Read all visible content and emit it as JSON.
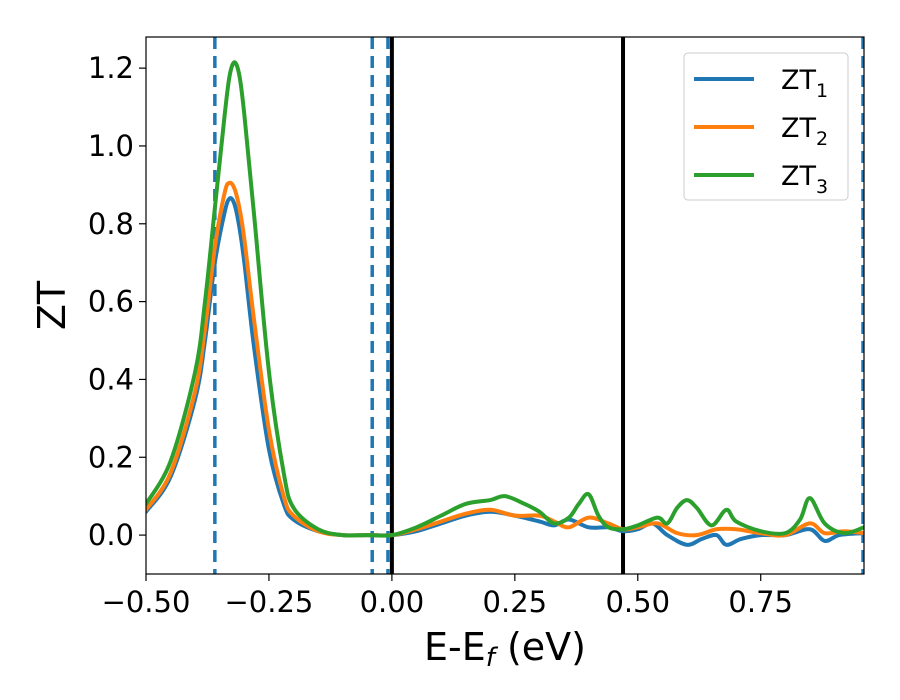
{
  "chart_data": {
    "type": "line",
    "xlabel": "E-E",
    "xlabel_subscript": "f",
    "xlabel_suffix": " (eV)",
    "ylabel": "ZT",
    "xlim": [
      -0.5,
      0.96
    ],
    "ylim": [
      -0.1,
      1.28
    ],
    "xticks": [
      -0.5,
      -0.25,
      0.0,
      0.25,
      0.5,
      0.75
    ],
    "xtick_labels": [
      "−0.50",
      "−0.25",
      "0.00",
      "0.25",
      "0.50",
      "0.75"
    ],
    "yticks": [
      0.0,
      0.2,
      0.4,
      0.6,
      0.8,
      1.0,
      1.2
    ],
    "ytick_labels": [
      "0.0",
      "0.2",
      "0.4",
      "0.6",
      "0.8",
      "1.0",
      "1.2"
    ],
    "grid": false,
    "legend_position": "top-right",
    "vlines": [
      {
        "x": -0.36,
        "style": "dashed",
        "color": "#1f77b4"
      },
      {
        "x": -0.04,
        "style": "dashed",
        "color": "#1f77b4"
      },
      {
        "x": -0.008,
        "style": "dashed",
        "color": "#1f77b4"
      },
      {
        "x": 0.0,
        "style": "solid",
        "color": "#000000"
      },
      {
        "x": 0.47,
        "style": "solid",
        "color": "#000000"
      },
      {
        "x": 0.958,
        "style": "dashed",
        "color": "#1f77b4"
      }
    ],
    "series": [
      {
        "name": "ZT",
        "subscript": "1",
        "color": "#1f77b4",
        "x": [
          -0.5,
          -0.45,
          -0.4,
          -0.38,
          -0.36,
          -0.34,
          -0.33,
          -0.32,
          -0.31,
          -0.3,
          -0.28,
          -0.25,
          -0.22,
          -0.2,
          -0.15,
          -0.1,
          -0.05,
          0.0,
          0.05,
          0.1,
          0.15,
          0.2,
          0.25,
          0.3,
          0.33,
          0.36,
          0.4,
          0.44,
          0.47,
          0.5,
          0.53,
          0.56,
          0.6,
          0.63,
          0.66,
          0.68,
          0.71,
          0.75,
          0.8,
          0.85,
          0.88,
          0.91,
          0.96
        ],
        "y": [
          0.06,
          0.15,
          0.35,
          0.5,
          0.7,
          0.83,
          0.865,
          0.85,
          0.79,
          0.7,
          0.48,
          0.22,
          0.08,
          0.04,
          0.01,
          0.0,
          0.0,
          0.0,
          0.01,
          0.03,
          0.05,
          0.06,
          0.05,
          0.035,
          0.025,
          0.04,
          0.02,
          0.02,
          0.01,
          0.015,
          0.03,
          0.0,
          -0.025,
          -0.01,
          0.0,
          -0.025,
          -0.01,
          0.0,
          0.0,
          0.015,
          -0.015,
          0.0,
          0.005
        ]
      },
      {
        "name": "ZT",
        "subscript": "2",
        "color": "#ff7f0e",
        "x": [
          -0.5,
          -0.45,
          -0.4,
          -0.38,
          -0.36,
          -0.34,
          -0.33,
          -0.32,
          -0.31,
          -0.3,
          -0.28,
          -0.25,
          -0.22,
          -0.2,
          -0.15,
          -0.1,
          -0.05,
          0.0,
          0.05,
          0.1,
          0.15,
          0.2,
          0.25,
          0.3,
          0.33,
          0.36,
          0.4,
          0.44,
          0.47,
          0.5,
          0.54,
          0.58,
          0.62,
          0.66,
          0.7,
          0.75,
          0.8,
          0.85,
          0.88,
          0.92,
          0.96
        ],
        "y": [
          0.065,
          0.16,
          0.37,
          0.53,
          0.74,
          0.88,
          0.905,
          0.89,
          0.84,
          0.76,
          0.55,
          0.27,
          0.1,
          0.05,
          0.01,
          0.0,
          0.0,
          0.0,
          0.015,
          0.035,
          0.055,
          0.065,
          0.05,
          0.05,
          0.035,
          0.02,
          0.045,
          0.03,
          0.015,
          0.02,
          0.03,
          0.005,
          0.0,
          0.015,
          0.015,
          0.005,
          0.0,
          0.03,
          0.005,
          0.01,
          0.005
        ]
      },
      {
        "name": "ZT",
        "subscript": "3",
        "color": "#2ca02c",
        "x": [
          -0.5,
          -0.45,
          -0.4,
          -0.38,
          -0.36,
          -0.34,
          -0.33,
          -0.32,
          -0.31,
          -0.3,
          -0.28,
          -0.25,
          -0.22,
          -0.2,
          -0.15,
          -0.1,
          -0.05,
          0.0,
          0.05,
          0.1,
          0.15,
          0.2,
          0.23,
          0.27,
          0.3,
          0.33,
          0.36,
          0.38,
          0.4,
          0.42,
          0.44,
          0.47,
          0.5,
          0.54,
          0.56,
          0.58,
          0.6,
          0.62,
          0.65,
          0.68,
          0.7,
          0.75,
          0.8,
          0.83,
          0.85,
          0.88,
          0.92,
          0.96
        ],
        "y": [
          0.08,
          0.19,
          0.42,
          0.6,
          0.84,
          1.08,
          1.18,
          1.215,
          1.18,
          1.08,
          0.82,
          0.42,
          0.16,
          0.07,
          0.015,
          0.0,
          0.0,
          0.0,
          0.02,
          0.05,
          0.08,
          0.09,
          0.1,
          0.08,
          0.06,
          0.03,
          0.045,
          0.08,
          0.105,
          0.05,
          0.02,
          0.015,
          0.025,
          0.045,
          0.03,
          0.07,
          0.09,
          0.07,
          0.025,
          0.065,
          0.035,
          0.01,
          0.005,
          0.04,
          0.095,
          0.03,
          0.005,
          0.02
        ]
      }
    ]
  }
}
